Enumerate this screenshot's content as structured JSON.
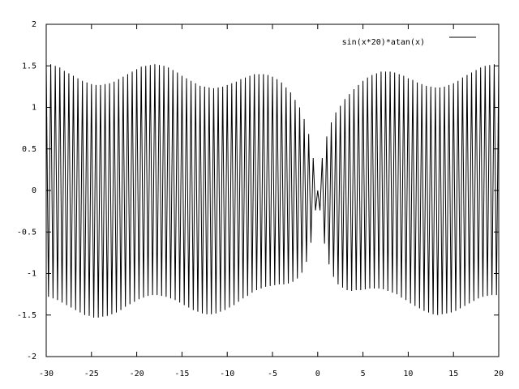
{
  "chart_data": {
    "type": "line",
    "x": [
      -30,
      -29.75,
      -29.5,
      -29.25,
      -29,
      -28.75,
      -28.5,
      -28.25,
      -28,
      -27.75,
      -27.5,
      -27.25,
      -27,
      -26.75,
      -26.5,
      -26.25,
      -26,
      -25.75,
      -25.5,
      -25.25,
      -25,
      -24.75,
      -24.5,
      -24.25,
      -24,
      -23.75,
      -23.5,
      -23.25,
      -23,
      -22.75,
      -22.5,
      -22.25,
      -22,
      -21.75,
      -21.5,
      -21.25,
      -21,
      -20.75,
      -20.5,
      -20.25,
      -20,
      -19.75,
      -19.5,
      -19.25,
      -19,
      -18.75,
      -18.5,
      -18.25,
      -18,
      -17.75,
      -17.5,
      -17.25,
      -17,
      -16.75,
      -16.5,
      -16.25,
      -16,
      -15.75,
      -15.5,
      -15.25,
      -15,
      -14.75,
      -14.5,
      -14.25,
      -14,
      -13.75,
      -13.5,
      -13.25,
      -13,
      -12.75,
      -12.5,
      -12.25,
      -12,
      -11.75,
      -11.5,
      -11.25,
      -11,
      -10.75,
      -10.5,
      -10.25,
      -10,
      -9.75,
      -9.5,
      -9.25,
      -9,
      -8.75,
      -8.5,
      -8.25,
      -8,
      -7.75,
      -7.5,
      -7.25,
      -7,
      -6.75,
      -6.5,
      -6.25,
      -6,
      -5.75,
      -5.5,
      -5.25,
      -5,
      -4.75,
      -4.5,
      -4.25,
      -4,
      -3.75,
      -3.5,
      -3.25,
      -3,
      -2.75,
      -2.5,
      -2.25,
      -2,
      -1.75,
      -1.5,
      -1.25,
      -1,
      -0.75,
      -0.5,
      -0.25,
      0,
      0.25,
      0.5,
      0.75,
      1,
      1.25,
      1.5,
      1.75,
      2,
      2.25,
      2.5,
      2.75,
      3,
      3.25,
      3.5,
      3.75,
      4,
      4.25,
      4.5,
      4.75,
      5,
      5.25,
      5.5,
      5.75,
      6,
      6.25,
      6.5,
      6.75,
      7,
      7.25,
      7.5,
      7.75,
      8,
      8.25,
      8.5,
      8.75,
      9,
      9.25,
      9.5,
      9.75,
      10,
      10.25,
      10.5,
      10.75,
      11,
      11.25,
      11.5,
      11.75,
      12,
      12.25,
      12.5,
      12.75,
      13,
      13.25,
      13.5,
      13.75,
      14,
      14.25,
      14.5,
      14.75,
      15,
      15.25,
      15.5,
      15.75,
      16,
      16.25,
      16.5,
      16.75,
      17,
      17.25,
      17.5,
      17.75,
      18,
      18.25,
      18.5,
      18.75,
      19,
      19.25,
      19.5,
      19.75,
      20
    ],
    "series": [
      {
        "name": "sin(x*20)*atan(x)",
        "color": "#000000",
        "values": [
          1.53,
          -1.28,
          1.52,
          -1.3,
          1.5,
          -1.32,
          1.48,
          -1.35,
          1.44,
          -1.38,
          1.41,
          -1.41,
          1.38,
          -1.44,
          1.35,
          -1.47,
          1.32,
          -1.5,
          1.3,
          -1.51,
          1.28,
          -1.53,
          1.27,
          -1.53,
          1.27,
          -1.52,
          1.28,
          -1.51,
          1.29,
          -1.49,
          1.31,
          -1.47,
          1.34,
          -1.44,
          1.37,
          -1.4,
          1.4,
          -1.37,
          1.43,
          -1.34,
          1.46,
          -1.31,
          1.49,
          -1.29,
          1.5,
          -1.27,
          1.51,
          -1.26,
          1.52,
          -1.26,
          1.51,
          -1.27,
          1.5,
          -1.28,
          1.48,
          -1.3,
          1.45,
          -1.32,
          1.42,
          -1.35,
          1.38,
          -1.38,
          1.35,
          -1.41,
          1.32,
          -1.44,
          1.29,
          -1.46,
          1.26,
          -1.48,
          1.25,
          -1.49,
          1.24,
          -1.49,
          1.23,
          -1.48,
          1.24,
          -1.46,
          1.25,
          -1.44,
          1.27,
          -1.41,
          1.29,
          -1.38,
          1.31,
          -1.34,
          1.34,
          -1.3,
          1.36,
          -1.27,
          1.38,
          -1.23,
          1.4,
          -1.2,
          1.4,
          -1.18,
          1.4,
          -1.16,
          1.39,
          -1.15,
          1.37,
          -1.14,
          1.34,
          -1.13,
          1.3,
          -1.13,
          1.24,
          -1.12,
          1.18,
          -1.1,
          1.09,
          -1.06,
          1.0,
          -0.99,
          0.86,
          -0.86,
          0.68,
          -0.63,
          0.39,
          -0.24,
          0,
          -0.24,
          0.39,
          -0.64,
          0.65,
          -0.89,
          0.82,
          -1.04,
          0.94,
          -1.13,
          1.02,
          -1.17,
          1.1,
          -1.2,
          1.16,
          -1.21,
          1.22,
          -1.2,
          1.27,
          -1.2,
          1.32,
          -1.19,
          1.36,
          -1.18,
          1.39,
          -1.18,
          1.41,
          -1.18,
          1.43,
          -1.19,
          1.43,
          -1.21,
          1.43,
          -1.23,
          1.42,
          -1.25,
          1.4,
          -1.29,
          1.38,
          -1.32,
          1.35,
          -1.36,
          1.33,
          -1.39,
          1.3,
          -1.42,
          1.28,
          -1.45,
          1.26,
          -1.47,
          1.25,
          -1.49,
          1.24,
          -1.5,
          1.24,
          -1.49,
          1.25,
          -1.48,
          1.27,
          -1.47,
          1.29,
          -1.45,
          1.32,
          -1.42,
          1.36,
          -1.39,
          1.39,
          -1.36,
          1.42,
          -1.33,
          1.45,
          -1.3,
          1.48,
          -1.28,
          1.5,
          -1.27,
          1.51,
          -1.26,
          1.52,
          -1.26,
          1.52
        ]
      }
    ],
    "xlim": [
      -30,
      20
    ],
    "xticks": [
      -30,
      -25,
      -20,
      -15,
      -10,
      -5,
      0,
      5,
      10,
      15,
      20
    ],
    "ylim": [
      -2,
      2
    ],
    "yticks": [
      -2,
      -1.5,
      -1,
      -0.5,
      0,
      0.5,
      1,
      1.5,
      2
    ],
    "grid": false,
    "legend": "top-right"
  }
}
